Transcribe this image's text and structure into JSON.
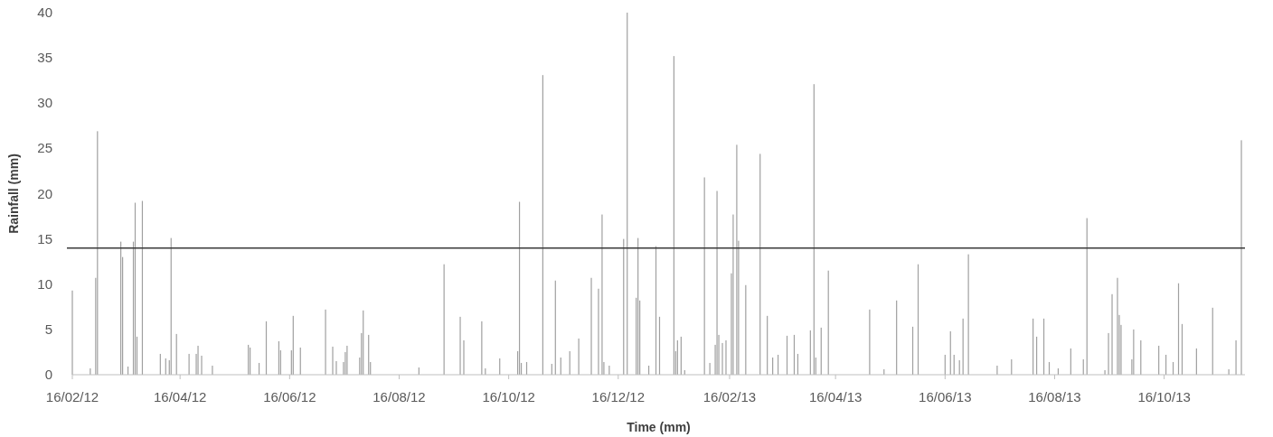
{
  "chart_data": {
    "type": "bar",
    "xlabel": "Time (mm)",
    "ylabel": "Rainfall (mm)",
    "color": "#a0a0a0",
    "x": [
      "2012-02-16",
      "2012-02-26",
      "2012-02-29",
      "2012-03-01",
      "2012-03-14",
      "2012-03-15",
      "2012-03-18",
      "2012-03-21",
      "2012-03-22",
      "2012-03-23",
      "2012-03-26",
      "2012-04-05",
      "2012-04-08",
      "2012-04-10",
      "2012-04-11",
      "2012-04-14",
      "2012-04-21",
      "2012-04-25",
      "2012-04-26",
      "2012-04-28",
      "2012-05-04",
      "2012-05-24",
      "2012-05-25",
      "2012-05-30",
      "2012-06-03",
      "2012-06-10",
      "2012-06-11",
      "2012-06-17",
      "2012-06-18",
      "2012-06-22",
      "2012-07-06",
      "2012-07-10",
      "2012-07-12",
      "2012-07-16",
      "2012-07-17",
      "2012-07-18",
      "2012-07-25",
      "2012-07-26",
      "2012-07-27",
      "2012-07-30",
      "2012-07-31",
      "2012-08-27",
      "2012-09-10",
      "2012-09-19",
      "2012-09-21",
      "2012-10-01",
      "2012-10-03",
      "2012-10-11",
      "2012-10-21",
      "2012-10-22",
      "2012-10-23",
      "2012-10-26",
      "2012-11-04",
      "2012-11-09",
      "2012-11-11",
      "2012-11-14",
      "2012-11-19",
      "2012-11-24",
      "2012-12-01",
      "2012-12-05",
      "2012-12-07",
      "2012-12-08",
      "2012-12-11",
      "2012-12-19",
      "2012-12-21",
      "2012-12-26",
      "2012-12-27",
      "2012-12-28",
      "2013-01-02",
      "2013-01-06",
      "2013-01-08",
      "2013-01-16",
      "2013-01-17",
      "2013-01-18",
      "2013-01-20",
      "2013-01-22",
      "2013-02-02",
      "2013-02-05",
      "2013-02-08",
      "2013-02-09",
      "2013-02-10",
      "2013-02-12",
      "2013-02-14",
      "2013-02-17",
      "2013-02-18",
      "2013-02-20",
      "2013-02-21",
      "2013-02-25",
      "2013-03-05",
      "2013-03-09",
      "2013-03-12",
      "2013-03-15",
      "2013-03-20",
      "2013-03-24",
      "2013-03-26",
      "2013-04-02",
      "2013-04-04",
      "2013-04-05",
      "2013-04-08",
      "2013-04-12",
      "2013-05-05",
      "2013-05-13",
      "2013-05-20",
      "2013-05-29",
      "2013-06-01",
      "2013-06-16",
      "2013-06-19",
      "2013-06-21",
      "2013-06-24",
      "2013-06-26",
      "2013-06-29",
      "2013-07-15",
      "2013-07-23",
      "2013-08-04",
      "2013-08-06",
      "2013-08-10",
      "2013-08-13",
      "2013-08-18",
      "2013-08-25",
      "2013-09-01",
      "2013-09-03",
      "2013-09-13",
      "2013-09-15",
      "2013-09-17",
      "2013-09-20",
      "2013-09-21",
      "2013-09-22",
      "2013-09-28",
      "2013-09-29",
      "2013-10-03",
      "2013-10-13",
      "2013-10-17",
      "2013-10-21",
      "2013-10-24",
      "2013-10-26",
      "2013-11-03",
      "2013-11-12",
      "2013-11-21",
      "2013-11-25",
      "2013-11-28"
    ],
    "values": [
      9.3,
      0.7,
      10.7,
      26.9,
      14.7,
      13.0,
      0.9,
      14.7,
      19.0,
      4.2,
      19.2,
      2.3,
      1.8,
      1.6,
      15.1,
      4.5,
      2.3,
      2.3,
      3.2,
      2.1,
      1.0,
      3.3,
      3.0,
      1.3,
      5.9,
      3.7,
      2.7,
      2.7,
      6.5,
      3.0,
      7.2,
      3.1,
      1.5,
      1.4,
      2.5,
      3.2,
      1.9,
      4.6,
      7.1,
      4.4,
      1.4,
      0.8,
      12.2,
      6.4,
      3.8,
      5.9,
      0.7,
      1.8,
      2.6,
      19.1,
      1.3,
      1.4,
      33.1,
      1.2,
      10.4,
      1.9,
      2.6,
      4.0,
      10.7,
      9.5,
      17.7,
      1.4,
      1.0,
      15.0,
      40.0,
      8.5,
      15.1,
      8.2,
      1.0,
      14.2,
      6.4,
      35.2,
      2.6,
      3.8,
      4.2,
      0.5,
      21.8,
      1.3,
      3.3,
      20.3,
      4.4,
      3.5,
      3.8,
      11.2,
      17.7,
      25.4,
      14.8,
      9.9,
      24.4,
      6.5,
      1.9,
      2.2,
      4.3,
      4.4,
      2.3,
      4.9,
      32.1,
      1.9,
      5.2,
      11.5,
      7.2,
      0.6,
      8.2,
      5.3,
      12.2,
      2.2,
      4.8,
      2.2,
      1.6,
      6.2,
      13.3,
      1.0,
      1.7,
      6.2,
      4.2,
      6.2,
      1.4,
      0.7,
      2.9,
      1.7,
      17.3,
      0.5,
      4.6,
      8.9,
      10.7,
      6.6,
      5.5,
      1.7,
      5.0,
      3.8,
      3.2,
      2.2,
      1.4,
      10.1,
      5.6,
      2.9,
      7.4,
      0.6,
      3.8,
      25.9
    ],
    "xlim": [
      "2012-02-16",
      "2013-11-30"
    ],
    "xticks": [
      {
        "value": "2012-02-16",
        "label": "16/02/12"
      },
      {
        "value": "2012-04-16",
        "label": "16/04/12"
      },
      {
        "value": "2012-06-16",
        "label": "16/06/12"
      },
      {
        "value": "2012-08-16",
        "label": "16/08/12"
      },
      {
        "value": "2012-10-16",
        "label": "16/10/12"
      },
      {
        "value": "2012-12-16",
        "label": "16/12/12"
      },
      {
        "value": "2013-02-16",
        "label": "16/02/13"
      },
      {
        "value": "2013-04-16",
        "label": "16/04/13"
      },
      {
        "value": "2013-06-16",
        "label": "16/06/13"
      },
      {
        "value": "2013-08-16",
        "label": "16/08/13"
      },
      {
        "value": "2013-10-16",
        "label": "16/10/13"
      }
    ],
    "ylim": [
      0,
      40
    ],
    "yticks": [
      0,
      5,
      10,
      15,
      20,
      25,
      30,
      35,
      40
    ],
    "ref_lines": [
      {
        "axis": "y",
        "value": 14,
        "color": "#3a3a3a"
      }
    ]
  }
}
